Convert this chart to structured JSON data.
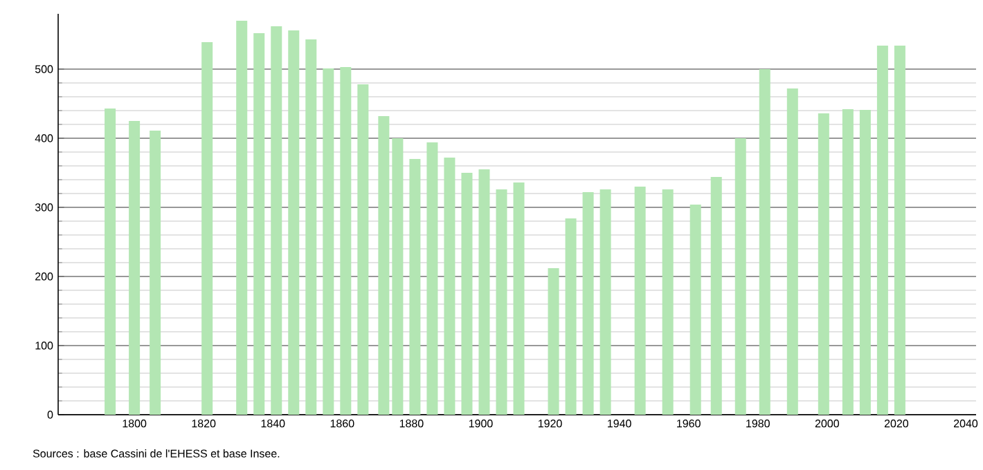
{
  "chart_data": {
    "type": "bar",
    "x": [
      1793,
      1800,
      1806,
      1821,
      1831,
      1836,
      1841,
      1846,
      1851,
      1856,
      1861,
      1866,
      1872,
      1876,
      1881,
      1886,
      1891,
      1896,
      1901,
      1906,
      1911,
      1921,
      1926,
      1931,
      1936,
      1946,
      1954,
      1962,
      1968,
      1975,
      1982,
      1990,
      1999,
      2006,
      2011,
      2016,
      2021
    ],
    "values": [
      443,
      425,
      411,
      539,
      570,
      552,
      562,
      556,
      543,
      501,
      503,
      478,
      432,
      400,
      370,
      394,
      372,
      350,
      355,
      326,
      336,
      212,
      284,
      322,
      326,
      330,
      326,
      304,
      344,
      400,
      500,
      472,
      436,
      442,
      441,
      534,
      534
    ],
    "color": "#b3e6b3",
    "xlim": [
      1778,
      2043
    ],
    "xticks": [
      1800,
      1820,
      1840,
      1860,
      1880,
      1900,
      1920,
      1940,
      1960,
      1980,
      2000,
      2020,
      2040
    ],
    "ylim": [
      0,
      580
    ],
    "yticks": [
      0,
      100,
      200,
      300,
      400,
      500
    ],
    "grid": "y",
    "annotations": [
      "Sources : base Cassini de l'EHESS et base Insee."
    ]
  }
}
